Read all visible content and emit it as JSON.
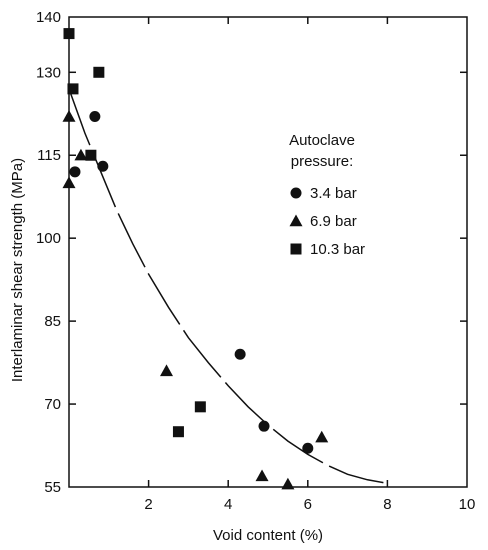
{
  "chart_data": {
    "type": "scatter",
    "title": "",
    "xlabel": "Void content (%)",
    "ylabel": "Interlaminar shear strength (MPa)",
    "xlim": [
      0,
      10
    ],
    "ylim": [
      55,
      140
    ],
    "x_ticks": [
      2,
      4,
      6,
      8,
      10
    ],
    "y_ticks": [
      55,
      70,
      85,
      100,
      115,
      130,
      140
    ],
    "grid": false,
    "legend_position": "right",
    "legend_title": [
      "Autoclave",
      "pressure:"
    ],
    "series": [
      {
        "name": "3.4 bar",
        "marker": "circle",
        "points": [
          [
            0.15,
            112
          ],
          [
            0.65,
            122
          ],
          [
            0.85,
            113
          ],
          [
            4.3,
            79
          ],
          [
            4.9,
            66
          ],
          [
            6.0,
            62
          ]
        ]
      },
      {
        "name": "6.9 bar",
        "marker": "triangle",
        "points": [
          [
            0.0,
            110
          ],
          [
            0.0,
            122
          ],
          [
            0.3,
            115
          ],
          [
            2.45,
            76
          ],
          [
            4.85,
            57
          ],
          [
            5.5,
            55.5
          ],
          [
            6.35,
            64
          ]
        ]
      },
      {
        "name": "10.3 bar",
        "marker": "square",
        "points": [
          [
            0.0,
            137
          ],
          [
            0.1,
            127
          ],
          [
            0.55,
            115
          ],
          [
            0.75,
            130
          ],
          [
            2.75,
            65
          ],
          [
            3.3,
            69.5
          ]
        ]
      }
    ],
    "fit_curve": {
      "style": "dashed",
      "points": [
        [
          0.0,
          127
        ],
        [
          0.4,
          119
        ],
        [
          0.8,
          112
        ],
        [
          1.2,
          105
        ],
        [
          1.6,
          99
        ],
        [
          2.0,
          93.5
        ],
        [
          2.5,
          87.5
        ],
        [
          3.0,
          82
        ],
        [
          3.5,
          77.5
        ],
        [
          4.0,
          73.3
        ],
        [
          4.5,
          69.5
        ],
        [
          5.0,
          66.2
        ],
        [
          5.5,
          63.3
        ],
        [
          6.0,
          60.9
        ],
        [
          6.5,
          58.9
        ],
        [
          7.0,
          57.3
        ],
        [
          7.5,
          56.3
        ],
        [
          7.9,
          55.8
        ]
      ]
    }
  }
}
